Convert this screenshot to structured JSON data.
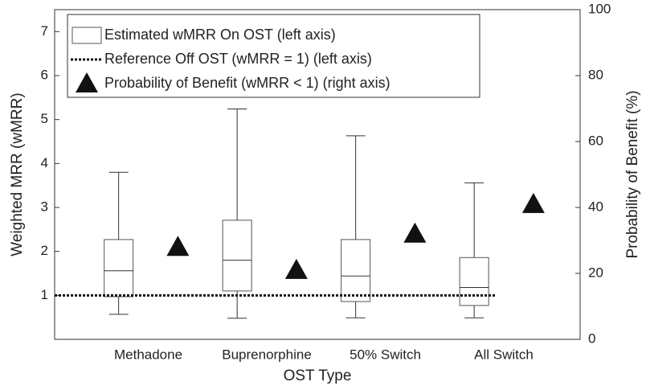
{
  "chart_data": {
    "type": "box",
    "xlabel": "OST Type",
    "ylabel": "Weighted MRR (wMRR)",
    "y2label": "Probability of Benefit (%)",
    "categories": [
      "Methadone",
      "Buprenorphine",
      "50% Switch",
      "All Switch"
    ],
    "ylim": [
      0,
      7.5
    ],
    "yticks": [
      1,
      2,
      3,
      4,
      5,
      6,
      7
    ],
    "y2lim": [
      0,
      100
    ],
    "y2ticks": [
      0,
      20,
      40,
      60,
      80,
      100
    ],
    "legend": "upper left",
    "series": [
      {
        "name": "Estimated wMRR On OST (left axis)",
        "type": "box",
        "color": "#555555",
        "whisker_low": [
          0.57,
          0.48,
          0.49,
          0.49
        ],
        "q1": [
          0.97,
          1.1,
          0.86,
          0.77
        ],
        "median": [
          1.56,
          1.8,
          1.44,
          1.18
        ],
        "q3": [
          2.27,
          2.71,
          2.27,
          1.86
        ],
        "whisker_high": [
          3.8,
          5.24,
          4.63,
          3.56
        ]
      },
      {
        "name": "Reference Off OST (wMRR = 1) (left axis)",
        "type": "line",
        "color": "#111111",
        "value": 1
      },
      {
        "name": "Probability of Benefit (wMRR < 1) (right axis)",
        "type": "scatter",
        "axis": "y2",
        "color": "#111111",
        "values": [
          28,
          21,
          32,
          41
        ]
      }
    ]
  }
}
